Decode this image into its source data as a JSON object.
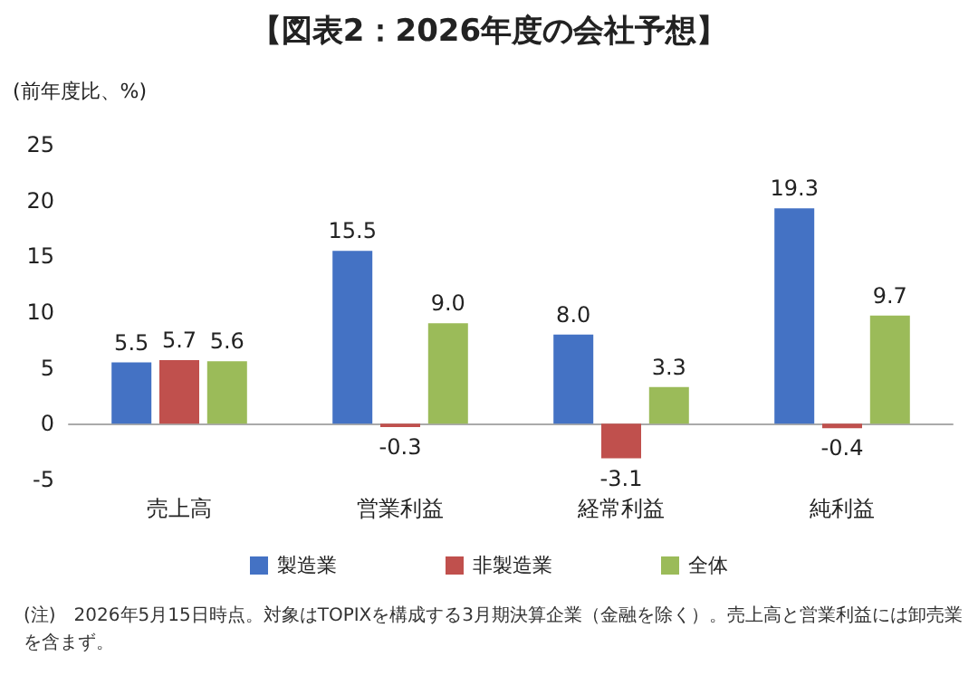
{
  "chart_data": {
    "type": "bar",
    "title": "【図表2：2026年度の会社予想】",
    "ylabel": "(前年度比、%)",
    "categories": [
      "売上高",
      "営業利益",
      "経常利益",
      "純利益"
    ],
    "series": [
      {
        "name": "製造業",
        "color": "#4472c4",
        "values": [
          5.5,
          15.5,
          8.0,
          19.3
        ],
        "value_labels": [
          "5.5",
          "15.5",
          "8.0",
          "19.3"
        ]
      },
      {
        "name": "非製造業",
        "color": "#c0504d",
        "values": [
          5.7,
          -0.3,
          -3.1,
          -0.4
        ],
        "value_labels": [
          "5.7",
          "-0.3",
          "-3.1",
          "-0.4"
        ]
      },
      {
        "name": "全体",
        "color": "#9bbb59",
        "values": [
          5.6,
          9.0,
          3.3,
          9.7
        ],
        "value_labels": [
          "5.6",
          "9.0",
          "3.3",
          "9.7"
        ]
      }
    ],
    "ylim": [
      -5,
      25
    ],
    "yticks": [
      -5,
      0,
      5,
      10,
      15,
      20,
      25
    ],
    "legend": "bottom",
    "annotations": [
      "(注)　2026年5月15日時点。対象はTOPIXを構成する3月期決算企業（金融を除く）。売上高と営業利益には卸売業を含まず。"
    ]
  }
}
